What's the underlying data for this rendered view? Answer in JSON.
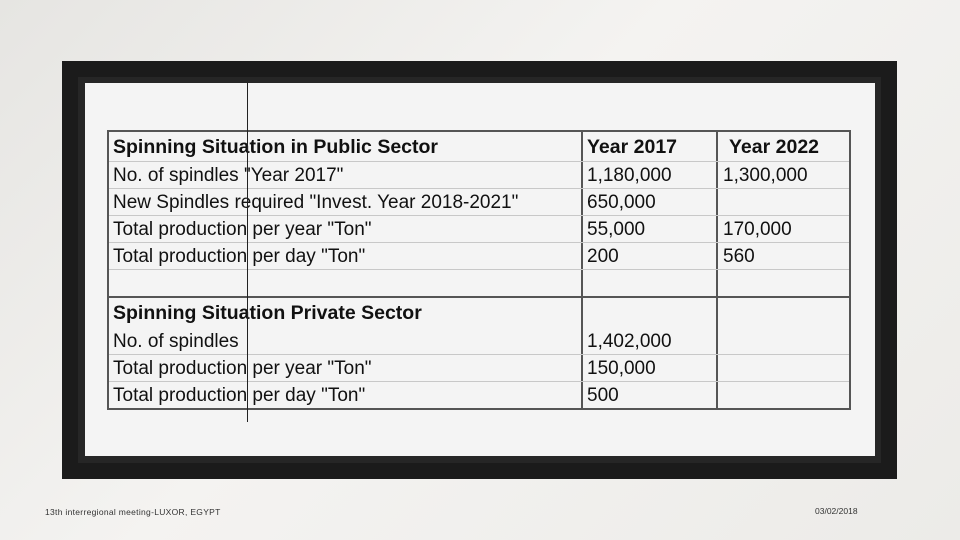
{
  "table": {
    "public": {
      "header": [
        "Spinning Situation in Public Sector",
        "Year 2017",
        "Year 2022"
      ],
      "rows": [
        [
          "No. of spindles  \"Year 2017\"",
          "1,180,000",
          "1,300,000"
        ],
        [
          "New Spindles required \"Invest. Year 2018-2021\"",
          "650,000",
          ""
        ],
        [
          "Total production per year \"Ton\"",
          "55,000",
          "170,000"
        ],
        [
          "Total production per day \"Ton\"",
          "200",
          "560"
        ]
      ]
    },
    "private": {
      "header": [
        "Spinning Situation Private Sector",
        "",
        ""
      ],
      "rows": [
        [
          "No. of spindles",
          "1,402,000",
          ""
        ],
        [
          "Total production per year \"Ton\"",
          "150,000",
          ""
        ],
        [
          "Total production per day \"Ton\"",
          "500",
          ""
        ]
      ]
    }
  },
  "footer": {
    "left": "13th interregional meeting-LUXOR, EGYPT",
    "right": "03/02/2018"
  }
}
